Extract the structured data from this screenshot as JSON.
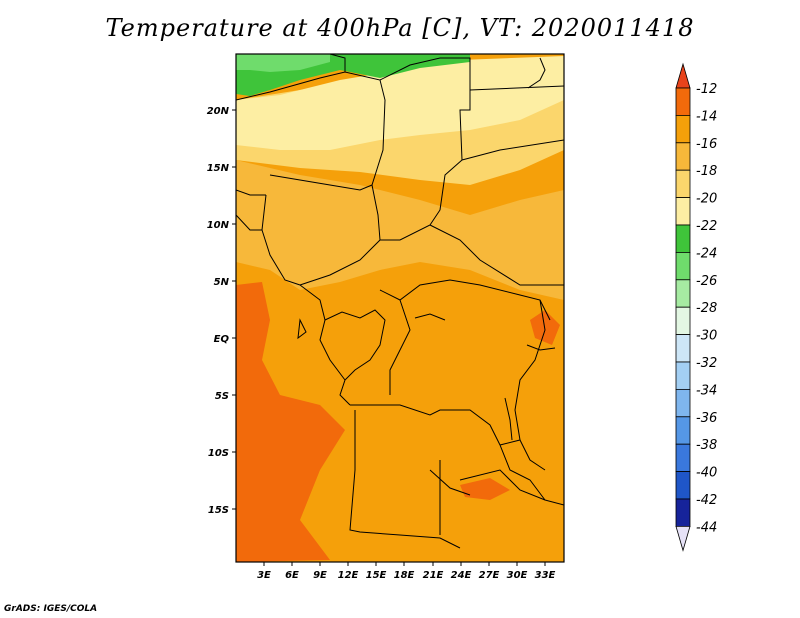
{
  "title": "Temperature at 400hPa [C], VT: 2020011418",
  "footer": "GrADS: IGES/COLA",
  "map": {
    "lon_labels": [
      "3E",
      "6E",
      "9E",
      "12E",
      "15E",
      "18E",
      "21E",
      "24E",
      "27E",
      "30E",
      "33E"
    ],
    "lat_labels": [
      "20N",
      "15N",
      "10N",
      "5N",
      "EQ",
      "5S",
      "10S",
      "15S"
    ]
  },
  "colorbar": {
    "labels": [
      "-12",
      "-14",
      "-16",
      "-18",
      "-20",
      "-22",
      "-24",
      "-26",
      "-28",
      "-30",
      "-32",
      "-34",
      "-36",
      "-38",
      "-40",
      "-42",
      "-44"
    ],
    "colors": {
      "top_triangle": "#e8431b",
      "bins": [
        "#f26a0b",
        "#f5a00a",
        "#f7b83a",
        "#fbd66c",
        "#fdeea3",
        "#3fc43a",
        "#6fdc6c",
        "#a6eba2",
        "#e3f7e3",
        "#cde6f7",
        "#a3cff3",
        "#7fb6ee",
        "#5597e6",
        "#3a78dd",
        "#1f56c8",
        "#16239a"
      ],
      "bottom_triangle": "#e6e2f7"
    }
  },
  "palette": {
    "lightest_yellow": "#fdeea3",
    "light_yellow": "#fbd66c",
    "tan_orange": "#f7b83a",
    "orange": "#f5a00a",
    "dark_orange": "#f26a0b",
    "green": "#3fc43a",
    "light_green": "#6fdc6c"
  }
}
